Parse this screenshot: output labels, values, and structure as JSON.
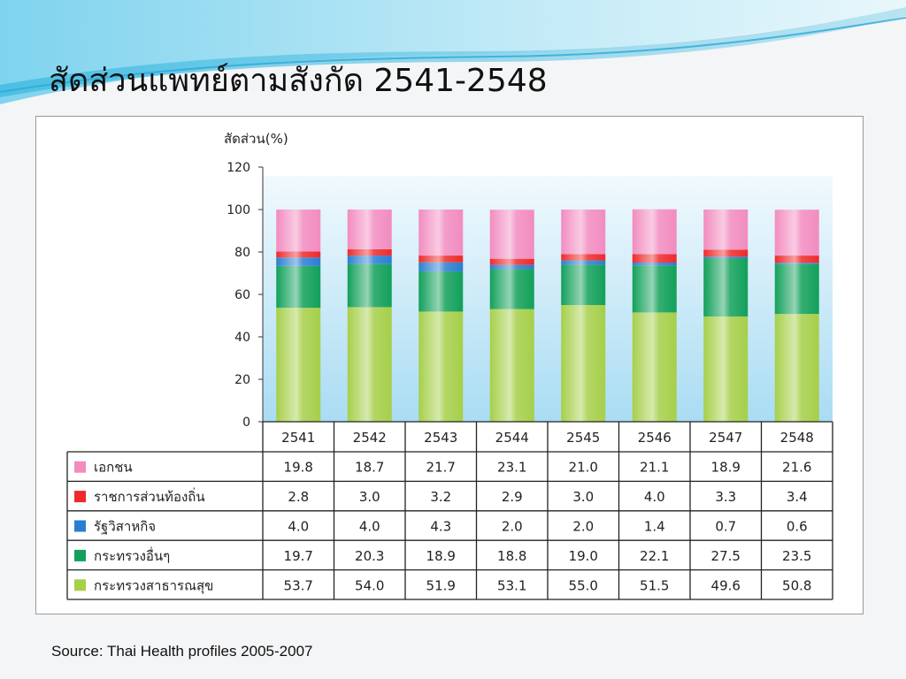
{
  "slide": {
    "title": "สัดส่วนแพทย์ตามสังกัด 2541-2548",
    "source": "Source: Thai Health profiles 2005-2007"
  },
  "colors": {
    "pink": "#f28cc0",
    "red": "#ee2a2a",
    "blue": "#2a7ed2",
    "green": "#12a05a",
    "lightgreen": "#a6cf4a",
    "plot_bg_top": "#eaf5fc",
    "plot_bg_bottom": "#a9dcf3"
  },
  "chart_data": {
    "type": "bar",
    "stacked": true,
    "ylabel": "สัดส่วน(%)",
    "ylim": [
      0,
      120
    ],
    "yticks": [
      0,
      20,
      40,
      60,
      80,
      100,
      120
    ],
    "categories": [
      "2541",
      "2542",
      "2543",
      "2544",
      "2545",
      "2546",
      "2547",
      "2548"
    ],
    "series": [
      {
        "name": "กระทรวงสาธารณสุข",
        "color": "lightgreen",
        "values": [
          53.7,
          54.0,
          51.9,
          53.1,
          55.0,
          51.5,
          49.6,
          50.8
        ]
      },
      {
        "name": "กระทรวงอื่นๆ",
        "color": "green",
        "values": [
          19.7,
          20.3,
          18.9,
          18.8,
          19.0,
          22.1,
          27.5,
          23.5
        ]
      },
      {
        "name": "รัฐวิสาหกิจ",
        "color": "blue",
        "values": [
          4.0,
          4.0,
          4.3,
          2.0,
          2.0,
          1.4,
          0.7,
          0.6
        ]
      },
      {
        "name": "ราชการส่วนท้องถิ่น",
        "color": "red",
        "values": [
          2.8,
          3.0,
          3.2,
          2.9,
          3.0,
          4.0,
          3.3,
          3.4
        ]
      },
      {
        "name": "เอกชน",
        "color": "pink",
        "values": [
          19.8,
          18.7,
          21.7,
          23.1,
          21.0,
          21.1,
          18.9,
          21.6
        ]
      }
    ],
    "table": {
      "rows": [
        {
          "label": "เอกชน",
          "color": "pink",
          "values": [
            "19.8",
            "18.7",
            "21.7",
            "23.1",
            "21.0",
            "21.1",
            "18.9",
            "21.6"
          ]
        },
        {
          "label": "ราชการส่วนท้องถิ่น",
          "color": "red",
          "values": [
            "2.8",
            "3.0",
            "3.2",
            "2.9",
            "3.0",
            "4.0",
            "3.3",
            "3.4"
          ]
        },
        {
          "label": "รัฐวิสาหกิจ",
          "color": "blue",
          "values": [
            "4.0",
            "4.0",
            "4.3",
            "2.0",
            "2.0",
            "1.4",
            "0.7",
            "0.6"
          ]
        },
        {
          "label": "กระทรวงอื่นๆ",
          "color": "green",
          "values": [
            "19.7",
            "20.3",
            "18.9",
            "18.8",
            "19.0",
            "22.1",
            "27.5",
            "23.5"
          ]
        },
        {
          "label": "กระทรวงสาธารณสุข",
          "color": "lightgreen",
          "values": [
            "53.7",
            "54.0",
            "51.9",
            "53.1",
            "55.0",
            "51.5",
            "49.6",
            "50.8"
          ]
        }
      ]
    }
  }
}
